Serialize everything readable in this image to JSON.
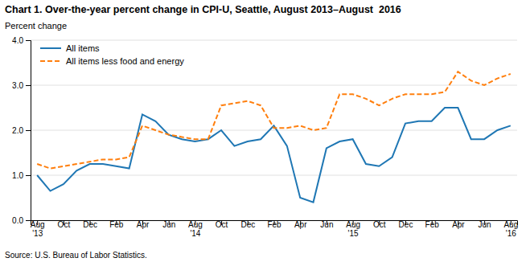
{
  "chart_data": {
    "type": "line",
    "title": "Chart 1. Over-the-year percent change in CPI-U, Seattle, August 2013–August  2016",
    "ylabel": "Percent change",
    "source": "Source: U.S. Bureau of Labor Statistics.",
    "categories": [
      "Aug\n'13",
      null,
      "Oct",
      null,
      "Dec",
      null,
      "Feb",
      null,
      "Apr",
      null,
      "Jun",
      null,
      "Aug\n'14",
      null,
      "Oct",
      null,
      "Dec",
      null,
      "Feb",
      null,
      "Apr",
      null,
      "Jun",
      null,
      "Aug\n'15",
      null,
      "Oct",
      null,
      "Dec",
      null,
      "Feb",
      null,
      "Apr",
      null,
      "Jun",
      null,
      "Aug\n'16"
    ],
    "series": [
      {
        "name": "All items",
        "line_style": "solid",
        "values": [
          1.0,
          0.65,
          0.8,
          1.1,
          1.25,
          1.25,
          1.2,
          1.15,
          2.35,
          2.2,
          1.9,
          1.8,
          1.75,
          1.8,
          2.0,
          1.65,
          1.75,
          1.8,
          2.1,
          1.65,
          0.5,
          0.4,
          1.6,
          1.75,
          1.8,
          1.25,
          1.2,
          1.4,
          2.15,
          2.2,
          2.2,
          2.5,
          2.5,
          1.8,
          1.8,
          2.0,
          2.1
        ]
      },
      {
        "name": "All items less food and energy",
        "line_style": "dashed",
        "values": [
          1.25,
          1.15,
          1.2,
          1.25,
          1.3,
          1.35,
          1.35,
          1.4,
          2.1,
          2.0,
          1.9,
          1.85,
          1.8,
          1.8,
          2.55,
          2.6,
          2.65,
          2.55,
          2.05,
          2.05,
          2.1,
          2.0,
          2.05,
          2.8,
          2.8,
          2.7,
          2.55,
          2.7,
          2.8,
          2.8,
          2.8,
          2.85,
          3.3,
          3.1,
          3.0,
          3.15,
          3.25
        ]
      }
    ],
    "ylim": [
      0.0,
      4.0
    ],
    "yticks": [
      {
        "value": 0.0,
        "label": "0.0"
      },
      {
        "value": 1.0,
        "label": "1.0"
      },
      {
        "value": 2.0,
        "label": "2.0"
      },
      {
        "value": 3.0,
        "label": "3.0"
      },
      {
        "value": 4.0,
        "label": "4.0"
      }
    ],
    "grid": true,
    "legend": "upper left"
  }
}
